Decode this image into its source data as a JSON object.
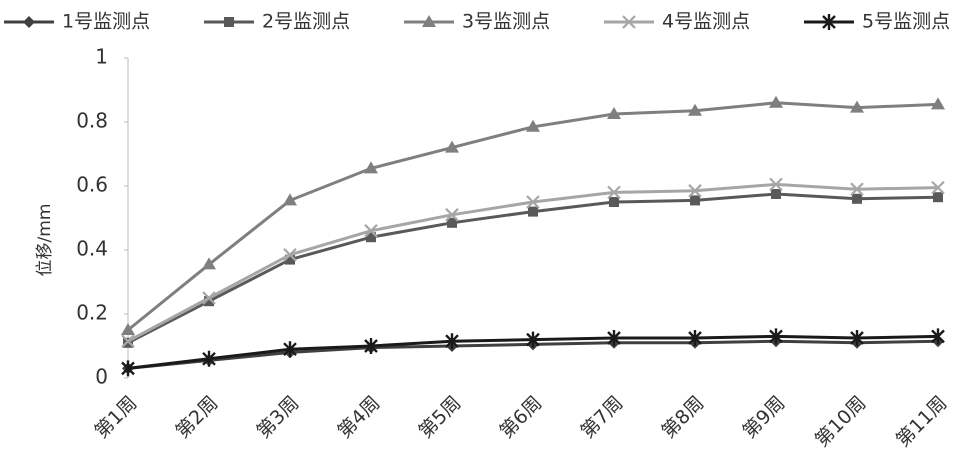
{
  "chart_data": {
    "type": "line",
    "y_label": "位移/mm",
    "categories": [
      "第1周",
      "第2周",
      "第3周",
      "第4周",
      "第5周",
      "第6周",
      "第7周",
      "第8周",
      "第9周",
      "第10周",
      "第11周"
    ],
    "series": [
      {
        "name": "1号监测点",
        "color": "#404040",
        "marker": "diamond",
        "values": [
          0.03,
          0.055,
          0.08,
          0.095,
          0.1,
          0.105,
          0.11,
          0.11,
          0.115,
          0.11,
          0.115
        ]
      },
      {
        "name": "2号监测点",
        "color": "#595959",
        "marker": "square",
        "values": [
          0.11,
          0.24,
          0.37,
          0.44,
          0.485,
          0.52,
          0.55,
          0.555,
          0.575,
          0.56,
          0.565
        ]
      },
      {
        "name": "3号监测点",
        "color": "#7f7f7f",
        "marker": "triangle",
        "values": [
          0.15,
          0.355,
          0.555,
          0.655,
          0.72,
          0.785,
          0.825,
          0.835,
          0.86,
          0.845,
          0.855
        ]
      },
      {
        "name": "4号监测点",
        "color": "#a6a6a6",
        "marker": "x",
        "values": [
          0.115,
          0.25,
          0.385,
          0.46,
          0.51,
          0.55,
          0.58,
          0.585,
          0.605,
          0.59,
          0.595
        ]
      },
      {
        "name": "5号监测点",
        "color": "#1a1a1a",
        "marker": "star",
        "values": [
          0.03,
          0.06,
          0.09,
          0.1,
          0.115,
          0.12,
          0.125,
          0.125,
          0.13,
          0.125,
          0.13
        ]
      }
    ],
    "ylim": [
      0,
      1
    ],
    "yticks": [
      0,
      0.2,
      0.4,
      0.6,
      0.8,
      1
    ],
    "grid": false,
    "legend": "top"
  }
}
